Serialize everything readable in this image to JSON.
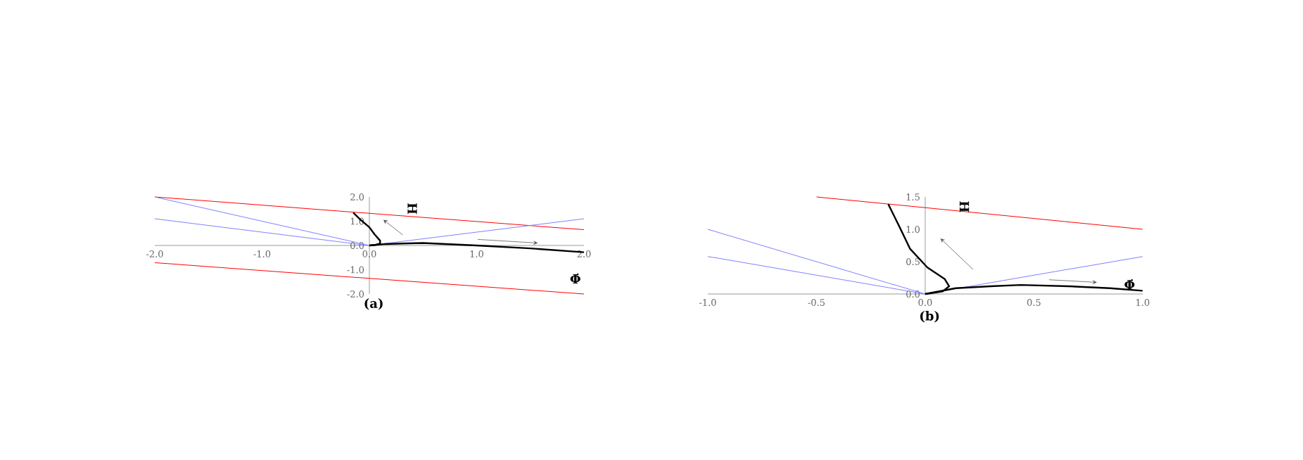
{
  "chart_data": [
    {
      "type": "line",
      "title": "(a)",
      "xlabel": "Φ̇",
      "ylabel": "H",
      "xlim": [
        -2,
        2
      ],
      "ylim": [
        -2,
        2
      ],
      "xticks": [
        {
          "value": -2,
          "label": "-2.0"
        },
        {
          "value": -1,
          "label": "-1.0"
        },
        {
          "value": 0,
          "label": "0.0"
        },
        {
          "value": 1,
          "label": "1.0"
        },
        {
          "value": 2,
          "label": "2.0"
        }
      ],
      "yticks": [
        {
          "value": -2,
          "label": "-2.0"
        },
        {
          "value": -1,
          "label": "-1.0"
        },
        {
          "value": 0,
          "label": "0.0"
        },
        {
          "value": 1,
          "label": "1.0"
        },
        {
          "value": 2,
          "label": "2.0"
        }
      ],
      "series": [
        {
          "color": "#ff0000",
          "x": [
            -2,
            2
          ],
          "values": [
            2.0,
            0.65
          ]
        },
        {
          "color": "#ff0000",
          "x": [
            -2,
            2
          ],
          "values": [
            -0.71,
            -2.0
          ]
        },
        {
          "color": "#8080ff",
          "x": [
            -2,
            0
          ],
          "values": [
            2.0,
            0
          ]
        },
        {
          "color": "#8080ff",
          "x": [
            -2,
            0,
            2
          ],
          "values": [
            1.1,
            0,
            1.1
          ]
        },
        {
          "color": "#000000",
          "x": [
            -0.15,
            -0.08,
            0,
            0.05,
            0.1,
            0.1,
            0.05,
            0
          ],
          "values": [
            1.35,
            1.05,
            0.75,
            0.45,
            0.2,
            0.08,
            0.02,
            0
          ]
        },
        {
          "color": "#000000",
          "x": [
            0,
            0.15,
            0.3,
            0.5,
            1,
            1.5,
            2
          ],
          "values": [
            0,
            0.06,
            0.08,
            0.1,
            0.0,
            -0.12,
            -0.28
          ]
        }
      ]
    },
    {
      "type": "line",
      "title": "(b)",
      "xlabel": "Φ̇",
      "ylabel": "H",
      "xlim": [
        -1,
        1
      ],
      "ylim": [
        0,
        1.5
      ],
      "xticks": [
        {
          "value": -1,
          "label": "-1.0"
        },
        {
          "value": -0.5,
          "label": "-0.5"
        },
        {
          "value": 0,
          "label": "0.0"
        },
        {
          "value": 0.5,
          "label": "0.5"
        },
        {
          "value": 1,
          "label": "1.0"
        }
      ],
      "yticks": [
        {
          "value": 0,
          "label": "0.0"
        },
        {
          "value": 0.5,
          "label": "0.5"
        },
        {
          "value": 1,
          "label": "1.0"
        },
        {
          "value": 1.5,
          "label": "1.5"
        }
      ],
      "series": [
        {
          "color": "#ff0000",
          "x": [
            -0.5,
            1
          ],
          "values": [
            1.5,
            1.0
          ]
        },
        {
          "color": "#8080ff",
          "x": [
            -1,
            0
          ],
          "values": [
            1.0,
            0
          ]
        },
        {
          "color": "#8080ff",
          "x": [
            -1,
            0,
            1
          ],
          "values": [
            0.58,
            0,
            0.58
          ]
        },
        {
          "color": "#000000",
          "x": [
            -0.17,
            -0.12,
            -0.07,
            0.01,
            0.09,
            0.11,
            0.08,
            0
          ],
          "values": [
            1.39,
            1.05,
            0.7,
            0.41,
            0.23,
            0.12,
            0.04,
            0
          ]
        },
        {
          "color": "#000000",
          "x": [
            0,
            0.14,
            0.3,
            0.44,
            0.66,
            0.85,
            1
          ],
          "values": [
            0,
            0.09,
            0.12,
            0.14,
            0.12,
            0.09,
            0.05
          ]
        }
      ]
    }
  ]
}
